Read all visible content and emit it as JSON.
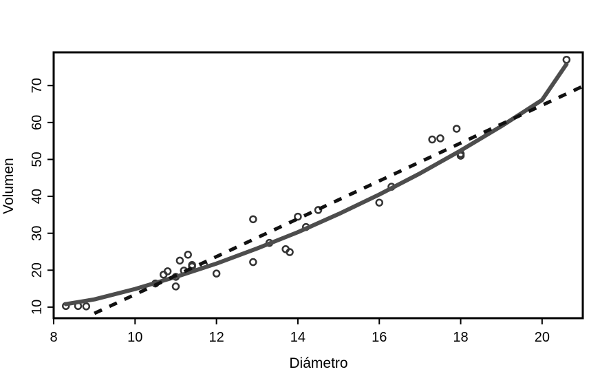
{
  "chart_data": {
    "type": "scatter",
    "title": "",
    "xlabel": "Diámetro",
    "ylabel": "Volumen",
    "xlim": [
      8.0,
      21.0
    ],
    "ylim": [
      7.0,
      79.0
    ],
    "xticks": [
      8,
      10,
      12,
      14,
      16,
      18,
      20
    ],
    "yticks": [
      10,
      20,
      30,
      40,
      50,
      60,
      70
    ],
    "grid": false,
    "legend": "none",
    "colors": {
      "points": "#333333",
      "solid_line": "#4d4d4d",
      "dashed_line": "#111111",
      "frame": "#000000"
    },
    "points": [
      {
        "x": 8.3,
        "y": 10.3
      },
      {
        "x": 8.6,
        "y": 10.3
      },
      {
        "x": 8.8,
        "y": 10.2
      },
      {
        "x": 10.5,
        "y": 16.4
      },
      {
        "x": 10.7,
        "y": 18.8
      },
      {
        "x": 10.8,
        "y": 19.7
      },
      {
        "x": 11.0,
        "y": 15.6
      },
      {
        "x": 11.0,
        "y": 18.2
      },
      {
        "x": 11.1,
        "y": 22.6
      },
      {
        "x": 11.2,
        "y": 19.9
      },
      {
        "x": 11.3,
        "y": 24.2
      },
      {
        "x": 11.4,
        "y": 21.0
      },
      {
        "x": 11.4,
        "y": 21.4
      },
      {
        "x": 11.7,
        "y": 21.3
      },
      {
        "x": 12.0,
        "y": 19.1
      },
      {
        "x": 12.9,
        "y": 22.2
      },
      {
        "x": 12.9,
        "y": 33.8
      },
      {
        "x": 13.3,
        "y": 27.4
      },
      {
        "x": 13.7,
        "y": 25.7
      },
      {
        "x": 13.8,
        "y": 24.9
      },
      {
        "x": 14.0,
        "y": 34.5
      },
      {
        "x": 14.2,
        "y": 31.7
      },
      {
        "x": 14.5,
        "y": 36.3
      },
      {
        "x": 16.0,
        "y": 38.3
      },
      {
        "x": 16.3,
        "y": 42.6
      },
      {
        "x": 17.3,
        "y": 55.4
      },
      {
        "x": 17.5,
        "y": 55.7
      },
      {
        "x": 17.9,
        "y": 58.3
      },
      {
        "x": 18.0,
        "y": 51.5
      },
      {
        "x": 18.0,
        "y": 51.0
      },
      {
        "x": 20.6,
        "y": 77.0
      }
    ],
    "lines": [
      {
        "style": "solid",
        "x": [
          8.3,
          9.0,
          10.0,
          11.0,
          12.0,
          13.0,
          14.0,
          15.0,
          16.0,
          17.0,
          18.0,
          19.0,
          20.0,
          20.6
        ],
        "y": [
          10.8,
          12.1,
          14.9,
          18.2,
          21.8,
          25.9,
          30.3,
          35.2,
          40.5,
          46.2,
          52.4,
          59.0,
          66.1,
          75.8
        ]
      },
      {
        "style": "dashed",
        "x": [
          9.0,
          21.0
        ],
        "y": [
          8.3,
          69.8
        ]
      }
    ]
  }
}
